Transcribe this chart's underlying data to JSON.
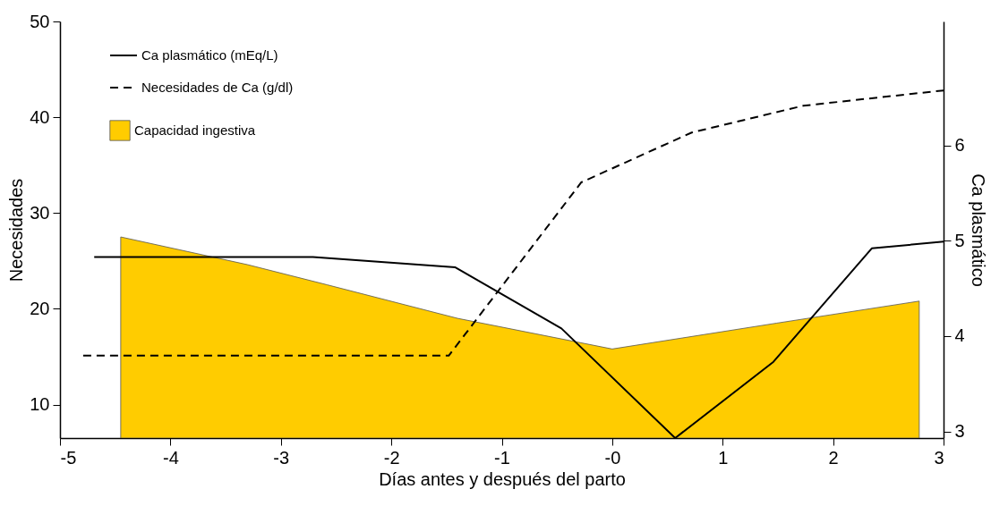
{
  "chart_data": {
    "type": "line",
    "xlabel": "Días antes y después del parto",
    "ylabel": "Necesidades",
    "y2label": "Ca plasmático",
    "xlim": [
      -5,
      3
    ],
    "xticks": [
      -5,
      -4,
      -3,
      -2,
      -1,
      {
        "value": 0,
        "label": "-0"
      },
      1,
      2,
      3
    ],
    "ylim": [
      6.5,
      50
    ],
    "yticks": [
      10,
      20,
      30,
      40,
      50
    ],
    "y2lim": [
      2.93,
      7.3
    ],
    "y2ticks": [
      3,
      4,
      5,
      6
    ],
    "grid": false,
    "legend": "top left",
    "series": [
      {
        "name": "Ca plasmático (mEq/L)",
        "axis": "y2",
        "color": "#000000",
        "line_style": "solid",
        "x": [
          -4.69,
          -2.71,
          -1.42,
          -0.46,
          0.57,
          1.46,
          2.35,
          3.0
        ],
        "values": [
          4.83,
          4.83,
          4.72,
          4.08,
          2.93,
          3.73,
          4.92,
          4.99
        ]
      },
      {
        "name": "Necesidades de Ca (g/dl)",
        "color": "#000000",
        "line_style": "dashed",
        "x": [
          -4.79,
          -1.48,
          -0.28,
          0.72,
          1.73,
          3.0
        ],
        "values": [
          15.1,
          15.1,
          33.2,
          38.4,
          41.2,
          42.8
        ]
      },
      {
        "name": "Capacidad ingestiva",
        "type": "area",
        "color": "#ffcc00",
        "x": [
          -4.45,
          -3.3,
          -2.58,
          -1.4,
          0.0,
          1.49,
          2.78
        ],
        "values": [
          27.5,
          24.6,
          22.5,
          19.0,
          15.8,
          18.5,
          20.8
        ]
      }
    ]
  }
}
